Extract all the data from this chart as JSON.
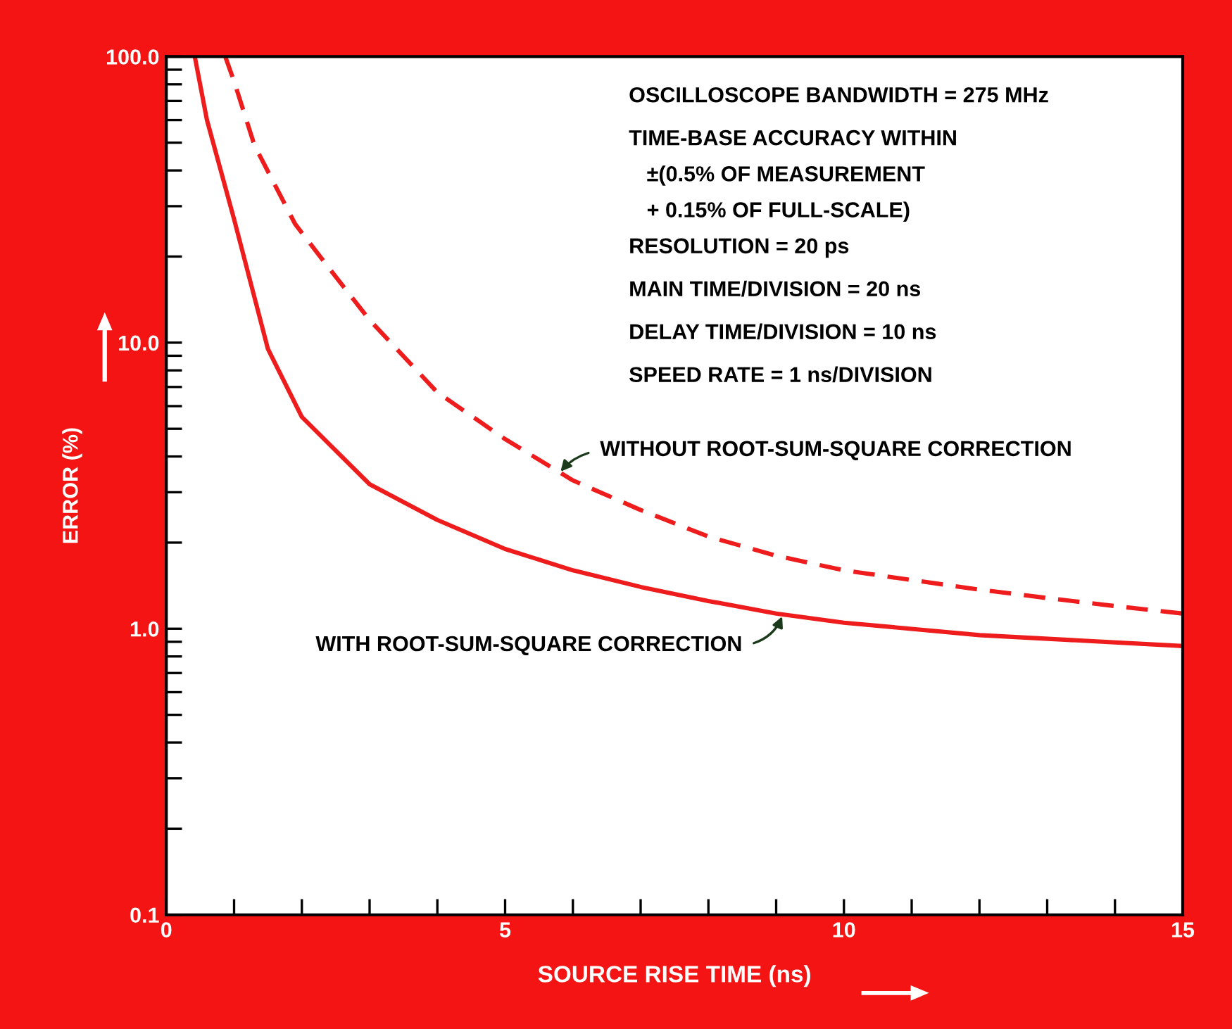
{
  "chart_data": {
    "type": "line",
    "xlabel": "SOURCE RISE TIME (ns)",
    "ylabel": "ERROR (%)",
    "log": "y",
    "xlim": [
      0,
      15
    ],
    "ylim": [
      0.1,
      100
    ],
    "xticks": [
      {
        "value": 0,
        "label": "0"
      },
      {
        "value": 1,
        "label": null
      },
      {
        "value": 2,
        "label": null
      },
      {
        "value": 3,
        "label": null
      },
      {
        "value": 4,
        "label": null
      },
      {
        "value": 5,
        "label": "5"
      },
      {
        "value": 6,
        "label": null
      },
      {
        "value": 7,
        "label": null
      },
      {
        "value": 8,
        "label": null
      },
      {
        "value": 9,
        "label": null
      },
      {
        "value": 10,
        "label": "10"
      },
      {
        "value": 11,
        "label": null
      },
      {
        "value": 12,
        "label": null
      },
      {
        "value": 13,
        "label": null
      },
      {
        "value": 14,
        "label": null
      },
      {
        "value": 15,
        "label": "15"
      }
    ],
    "yticks": [
      {
        "value": 0.1,
        "label": "0.1"
      },
      {
        "value": 0.2,
        "label": null
      },
      {
        "value": 0.3,
        "label": null
      },
      {
        "value": 0.4,
        "label": null
      },
      {
        "value": 0.5,
        "label": null
      },
      {
        "value": 0.6,
        "label": null
      },
      {
        "value": 0.7,
        "label": null
      },
      {
        "value": 0.8,
        "label": null
      },
      {
        "value": 0.9,
        "label": null
      },
      {
        "value": 1,
        "label": "1.0"
      },
      {
        "value": 2,
        "label": null
      },
      {
        "value": 3,
        "label": null
      },
      {
        "value": 4,
        "label": null
      },
      {
        "value": 5,
        "label": null
      },
      {
        "value": 6,
        "label": null
      },
      {
        "value": 7,
        "label": null
      },
      {
        "value": 8,
        "label": null
      },
      {
        "value": 9,
        "label": null
      },
      {
        "value": 10,
        "label": "10.0"
      },
      {
        "value": 20,
        "label": null
      },
      {
        "value": 30,
        "label": null
      },
      {
        "value": 40,
        "label": null
      },
      {
        "value": 50,
        "label": null
      },
      {
        "value": 60,
        "label": null
      },
      {
        "value": 70,
        "label": null
      },
      {
        "value": 80,
        "label": null
      },
      {
        "value": 90,
        "label": null
      },
      {
        "value": 100,
        "label": "100.0"
      }
    ],
    "grid": false,
    "legend": false,
    "marker": "none",
    "series": [
      {
        "color": "#ee1c1c",
        "line_style": "solid",
        "x": [
          0.42,
          0.6,
          1.0,
          1.5,
          2,
          3,
          4,
          5,
          6,
          7,
          8,
          9,
          10,
          12,
          15
        ],
        "values": [
          100,
          60,
          27,
          9.5,
          5.5,
          3.2,
          2.4,
          1.9,
          1.6,
          1.4,
          1.25,
          1.13,
          1.05,
          0.95,
          0.87
        ]
      },
      {
        "color": "#ee1c1c",
        "line_style": "dashed",
        "x": [
          0.87,
          1.0,
          1.3,
          1.9,
          2.5,
          3,
          4,
          5,
          6,
          7,
          8,
          9,
          10,
          11,
          12,
          13,
          14,
          15
        ],
        "values": [
          100,
          82,
          49,
          26,
          17,
          12,
          6.7,
          4.6,
          3.3,
          2.6,
          2.1,
          1.8,
          1.6,
          1.48,
          1.37,
          1.28,
          1.2,
          1.13
        ]
      }
    ],
    "annotations": [
      "OSCILLOSCOPE BANDWIDTH = 275 MHz",
      "TIME-BASE ACCURACY WITHIN",
      "   ±(0.5% OF MEASUREMENT",
      "   + 0.15% OF FULL-SCALE)",
      "RESOLUTION = 20 ps",
      "MAIN TIME/DIVISION = 20 ns",
      "DELAY TIME/DIVISION = 10 ns",
      "SPEED RATE = 1 ns/DIVISION",
      {
        "text": "WITHOUT ROOT-SUM-SQUARE CORRECTION",
        "x": 5.8,
        "y": 3.5
      },
      {
        "text": "WITH ROOT-SUM-SQUARE CORRECTION",
        "x": 9.1,
        "y": 1.12
      }
    ]
  }
}
